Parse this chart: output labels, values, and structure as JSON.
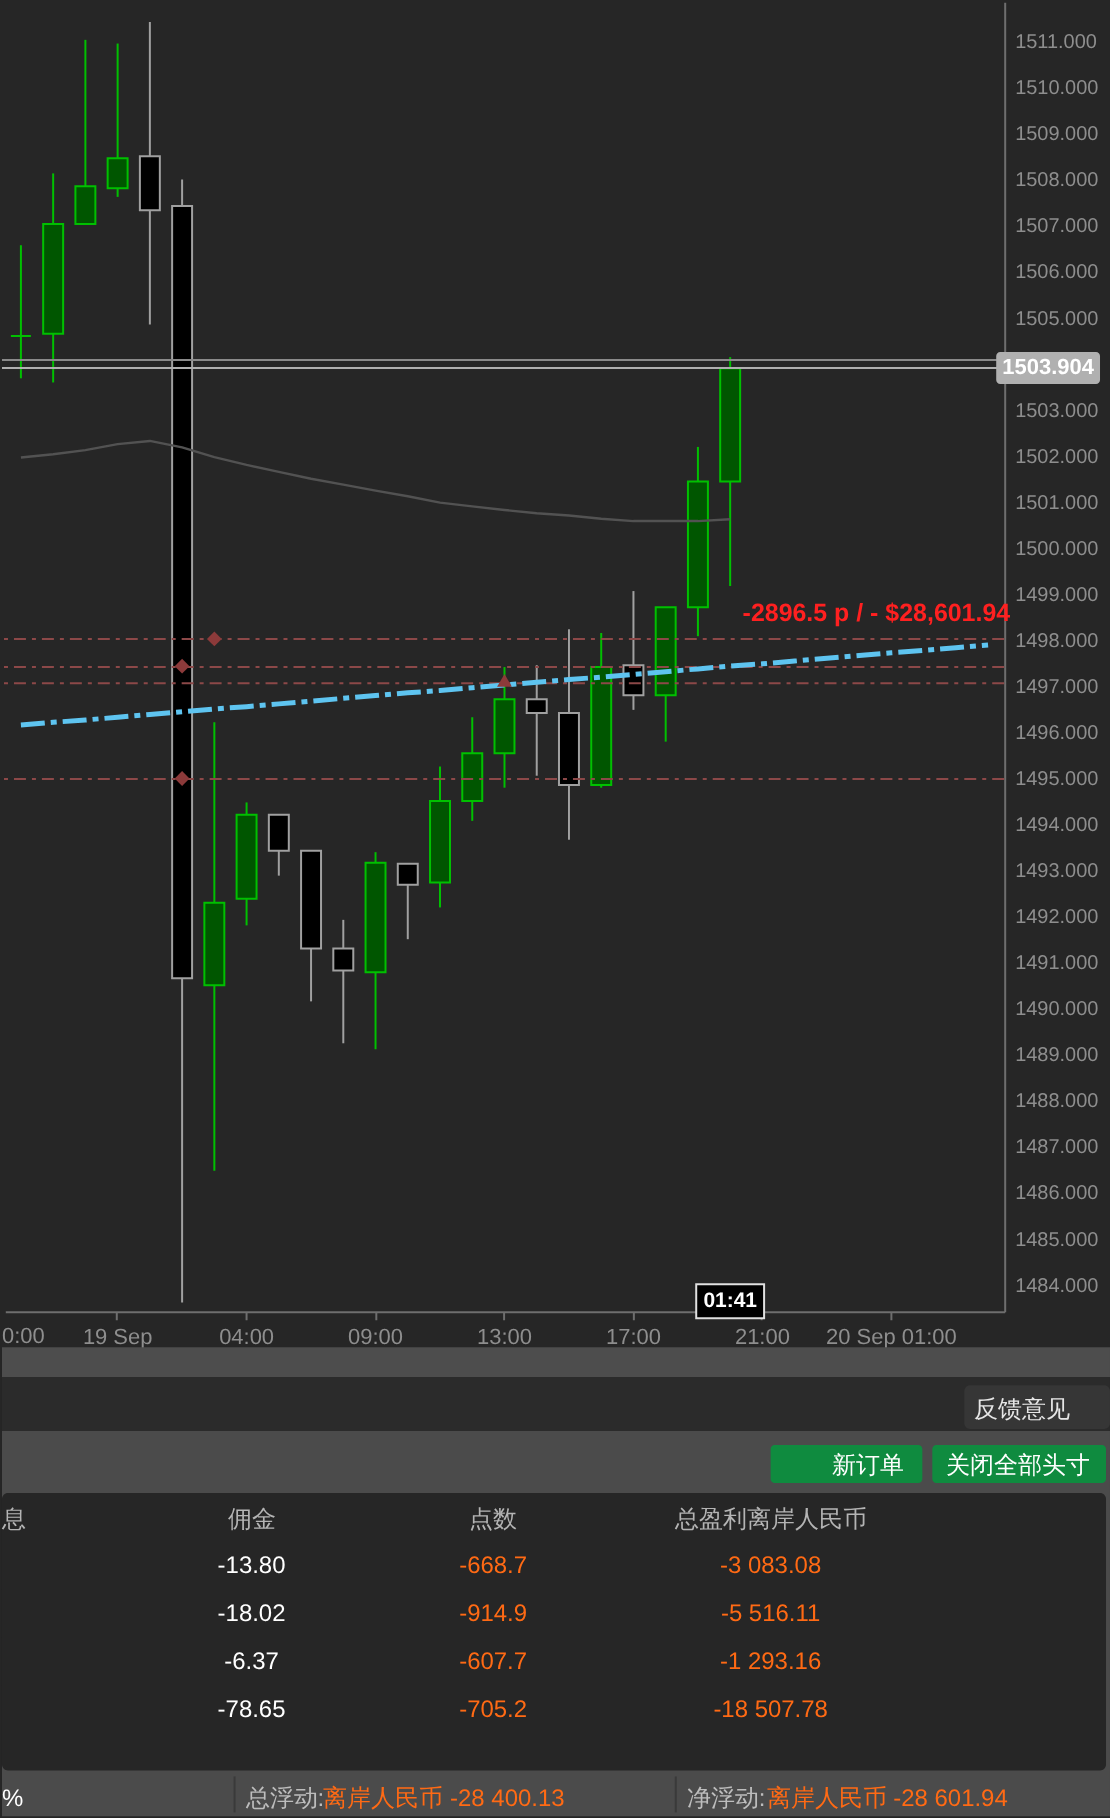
{
  "chart_data": [
    {
      "type": "candlestick",
      "categories": [
        null,
        null,
        null,
        "19 Sep",
        null,
        null,
        null,
        "04:00",
        null,
        null,
        null,
        "09:00",
        null,
        null,
        null,
        "13:00",
        null,
        null,
        null,
        "17:00",
        null,
        null,
        null,
        "21:00",
        null,
        null,
        null,
        "20 Sep 01:00",
        null,
        null,
        null
      ],
      "ohlc": [
        [
          1504.6,
          1506.57,
          1503.68,
          1504.6
        ],
        [
          1504.65,
          1508.13,
          1503.59,
          1507.03
        ],
        [
          1507.03,
          1511.03,
          1507.03,
          1507.85
        ],
        [
          1507.81,
          1510.95,
          1507.62,
          1508.46
        ],
        [
          1508.5,
          1511.42,
          1504.85,
          1507.33
        ],
        [
          1507.42,
          1508.0,
          1483.61,
          1490.65
        ],
        [
          1490.5,
          1496.21,
          1486.47,
          1492.29
        ],
        [
          1492.38,
          1494.47,
          1491.8,
          1494.2
        ],
        [
          1494.2,
          1494.2,
          1492.88,
          1493.42
        ],
        [
          1493.42,
          1493.42,
          1490.15,
          1491.3
        ],
        [
          1491.3,
          1491.92,
          1489.24,
          1490.82
        ],
        [
          1490.78,
          1493.39,
          1489.11,
          1493.16
        ],
        [
          1493.14,
          1493.14,
          1491.5,
          1492.68
        ],
        [
          1492.73,
          1495.25,
          1492.19,
          1494.5
        ],
        [
          1494.5,
          1496.32,
          1494.07,
          1495.54
        ],
        [
          1495.54,
          1497.41,
          1494.79,
          1496.71
        ],
        [
          1496.71,
          1497.45,
          1495.05,
          1496.41
        ],
        [
          1496.41,
          1498.23,
          1493.66,
          1494.85
        ],
        [
          1494.85,
          1498.15,
          1494.79,
          1497.41
        ],
        [
          1497.45,
          1499.06,
          1496.48,
          1496.8
        ],
        [
          1496.8,
          1498.71,
          1495.79,
          1498.71
        ],
        [
          1498.71,
          1502.19,
          1498.08,
          1501.44
        ],
        [
          1501.44,
          1504.14,
          1499.17,
          1503.9
        ],
        null,
        null,
        null,
        null,
        null,
        null,
        null,
        null
      ],
      "colors": [
        "#00c000",
        "#00c000",
        "#00c000",
        "#00c000",
        "#a0a0a0",
        "#a0a0a0",
        "#00c000",
        "#00c000",
        "#a0a0a0",
        "#a0a0a0",
        "#a0a0a0",
        "#00c000",
        "#a0a0a0",
        "#00c000",
        "#00c000",
        "#00c000",
        "#a0a0a0",
        "#a0a0a0",
        "#00c000",
        "#a0a0a0",
        "#00c000",
        "#00c000",
        "#00c000",
        null,
        null,
        null,
        null,
        null,
        null,
        null,
        null
      ],
      "series": [
        {
          "type": "line",
          "color": "#525252",
          "values": [
            1501.96,
            1502.03,
            1502.12,
            1502.25,
            1502.32,
            1502.18,
            1501.97,
            1501.8,
            1501.65,
            1501.5,
            1501.37,
            1501.24,
            1501.12,
            1500.98,
            1500.9,
            1500.82,
            1500.75,
            1500.7,
            1500.63,
            1500.58,
            1500.58,
            1500.58,
            1500.62,
            null,
            null,
            null,
            null,
            null,
            null,
            null,
            null
          ]
        },
        {
          "type": "line",
          "color": "#5ec4f0",
          "line_style": "dashed",
          "values": [
            1496.15,
            1496.21,
            1496.26,
            1496.32,
            1496.38,
            1496.44,
            1496.5,
            1496.55,
            1496.61,
            1496.67,
            1496.73,
            1496.79,
            1496.85,
            1496.9,
            1496.96,
            1497.02,
            1497.08,
            1497.14,
            1497.19,
            1497.25,
            1497.31,
            1497.37,
            1497.43,
            1497.48,
            1497.54,
            1497.6,
            1497.66,
            1497.72,
            1497.77,
            1497.83,
            1497.89
          ]
        },
        {
          "type": "scatter",
          "color": "#8c3a3a",
          "marker": "diamond",
          "values": [
            null,
            null,
            null,
            null,
            null,
            1497.43,
            1498.02,
            null,
            null,
            null,
            null,
            null,
            null,
            null,
            null,
            null,
            null,
            null,
            null,
            null,
            null,
            null,
            null,
            null,
            null,
            null,
            null,
            null,
            null,
            null,
            null
          ]
        },
        {
          "type": "scatter",
          "color": "#8c3a3a",
          "marker": "diamond",
          "values": [
            null,
            null,
            null,
            null,
            null,
            1494.99,
            null,
            null,
            null,
            null,
            null,
            null,
            null,
            null,
            null,
            null,
            null,
            null,
            null,
            null,
            null,
            null,
            null,
            null,
            null,
            null,
            null,
            null,
            null,
            null,
            null
          ]
        },
        {
          "type": "scatter",
          "color": "#8c3a3a",
          "marker": "triangle",
          "values": [
            null,
            null,
            null,
            null,
            null,
            null,
            null,
            null,
            null,
            null,
            null,
            null,
            null,
            null,
            null,
            1497.12,
            null,
            null,
            null,
            null,
            null,
            null,
            null,
            null,
            null,
            null,
            null,
            null,
            null,
            null,
            null
          ]
        }
      ],
      "ylim": [
        1483.42,
        1511.86
      ],
      "yticks": [
        {
          "value": 1484,
          "label": "1484.000"
        },
        {
          "value": 1485,
          "label": "1485.000"
        },
        {
          "value": 1486,
          "label": "1486.000"
        },
        {
          "value": 1487,
          "label": "1487.000"
        },
        {
          "value": 1488,
          "label": "1488.000"
        },
        {
          "value": 1489,
          "label": "1489.000"
        },
        {
          "value": 1490,
          "label": "1490.000"
        },
        {
          "value": 1491,
          "label": "1491.000"
        },
        {
          "value": 1492,
          "label": "1492.000"
        },
        {
          "value": 1493,
          "label": "1493.000"
        },
        {
          "value": 1494,
          "label": "1494.000"
        },
        {
          "value": 1495,
          "label": "1495.000"
        },
        {
          "value": 1496,
          "label": "1496.000"
        },
        {
          "value": 1497,
          "label": "1497.000"
        },
        {
          "value": 1498,
          "label": "1498.000"
        },
        {
          "value": 1499,
          "label": "1499.000"
        },
        {
          "value": 1500,
          "label": "1500.000"
        },
        {
          "value": 1501,
          "label": "1501.000"
        },
        {
          "value": 1502,
          "label": "1502.000"
        },
        {
          "value": 1503,
          "label": "1503.000"
        },
        {
          "value": 1504,
          "label": null
        },
        {
          "value": 1505,
          "label": "1505.000"
        },
        {
          "value": 1506,
          "label": "1506.000"
        },
        {
          "value": 1507,
          "label": "1507.000"
        },
        {
          "value": 1508,
          "label": "1508.000"
        },
        {
          "value": 1509,
          "label": "1509.000"
        },
        {
          "value": 1510,
          "label": "1510.000"
        },
        {
          "value": 1511,
          "label": "1511.000"
        }
      ],
      "ref_lines": [
        {
          "axis": "y",
          "value": 1504.08,
          "color": "#8a8a8a"
        },
        {
          "axis": "y",
          "value": 1503.904,
          "label": "1503.904",
          "color": "#b0b0b0"
        },
        {
          "axis": "y",
          "value": 1498.02,
          "color": "#8c4848",
          "line_style": "dashed"
        },
        {
          "axis": "y",
          "value": 1497.41,
          "color": "#8c4848",
          "line_style": "dashed"
        },
        {
          "axis": "y",
          "value": 1497.06,
          "color": "#8c4848",
          "line_style": "dashed"
        },
        {
          "axis": "y",
          "value": 1494.98,
          "color": "#8c4848",
          "line_style": "dashed"
        }
      ],
      "annotations": [
        "-2896.5 p / - $28,601.94",
        "01:41",
        "0:00"
      ]
    },
    {
      "type": "other",
      "annotations": [
        "新订单",
        "关闭全部头寸",
        "反馈意见",
        "息",
        "佣金",
        "点数",
        "总盈利离岸人民币",
        "-13.80",
        "-668.7",
        "-3 083.08",
        "-18.02",
        "-914.9",
        "-5 516.11",
        "-6.37",
        "-607.7",
        "-1 293.16",
        "-78.65",
        "-705.2",
        "-18 507.78",
        "%",
        "总浮动:",
        "离岸人民币 -28 400.13",
        "净浮动:",
        "离岸人民币 -28 601.94"
      ]
    }
  ]
}
